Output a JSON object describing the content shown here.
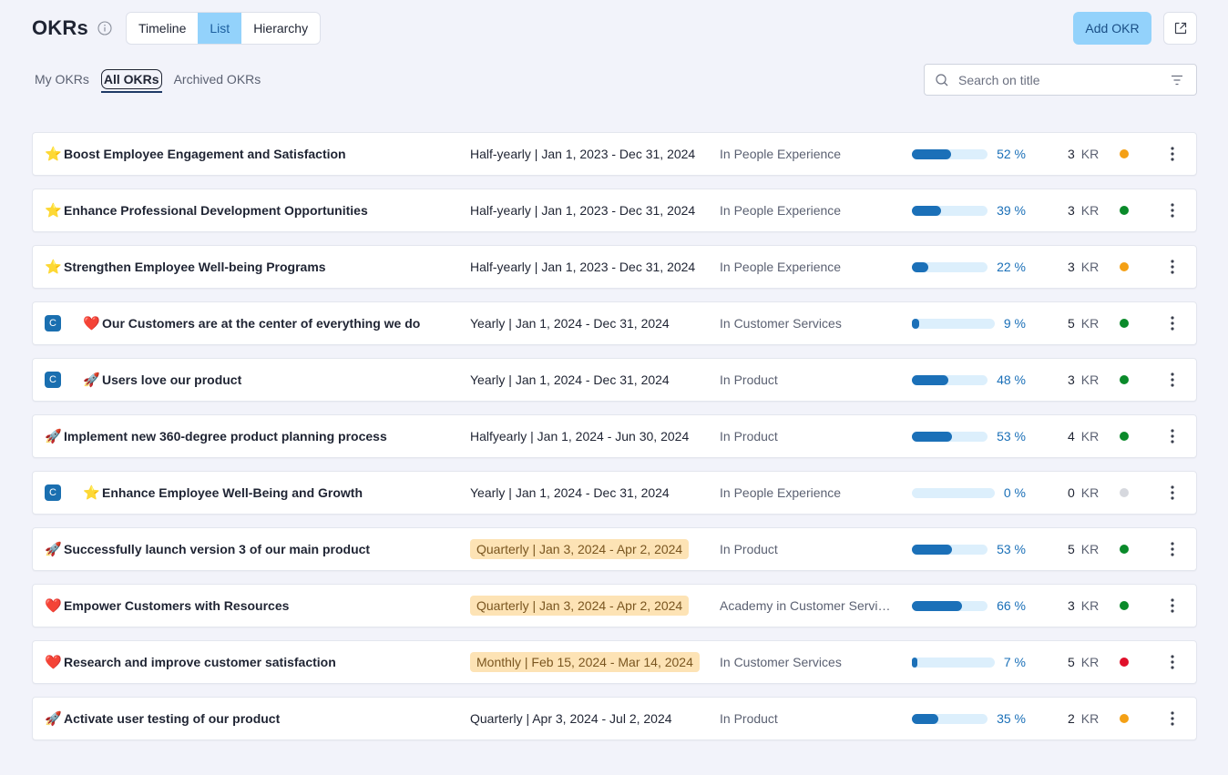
{
  "header": {
    "title": "OKRs",
    "views": [
      "Timeline",
      "List",
      "Hierarchy"
    ],
    "active_view": "List",
    "add_label": "Add OKR"
  },
  "tabs": [
    "My OKRs",
    "All OKRs",
    "Archived OKRs"
  ],
  "active_tab": "All OKRs",
  "search": {
    "placeholder": "Search on title",
    "value": ""
  },
  "kr_label": "KR",
  "colors": {
    "accent": "#93d2fb",
    "progress": "#1b70b8",
    "green": "#0a8a2a",
    "orange": "#f4a015",
    "red": "#e0102a",
    "gray": "#d6d8de"
  },
  "okrs": [
    {
      "icon": "star",
      "child": false,
      "title": "Boost Employee Engagement and Satisfaction",
      "period": "Half-yearly | Jan 1, 2023 - Dec 31, 2024",
      "highlight": false,
      "team": "In People Experience",
      "progress": 52,
      "pct_text": "52 %",
      "kr": "3",
      "status": "orange"
    },
    {
      "icon": "star",
      "child": false,
      "title": "Enhance Professional Development Opportunities",
      "period": "Half-yearly | Jan 1, 2023 - Dec 31, 2024",
      "highlight": false,
      "team": "In People Experience",
      "progress": 39,
      "pct_text": "39 %",
      "kr": "3",
      "status": "green"
    },
    {
      "icon": "star",
      "child": false,
      "title": "Strengthen Employee Well-being Programs",
      "period": "Half-yearly | Jan 1, 2023 - Dec 31, 2024",
      "highlight": false,
      "team": "In People Experience",
      "progress": 22,
      "pct_text": "22 %",
      "kr": "3",
      "status": "orange"
    },
    {
      "icon": "heart",
      "child": true,
      "badge": "C",
      "title": "Our Customers are at the center of everything we do",
      "period": "Yearly | Jan 1, 2024 - Dec 31, 2024",
      "highlight": false,
      "team": "In Customer Services",
      "progress": 9,
      "pct_text": "9 %",
      "kr": "5",
      "status": "green"
    },
    {
      "icon": "rocket",
      "child": true,
      "badge": "C",
      "title": "Users love our product",
      "period": "Yearly | Jan 1, 2024 - Dec 31, 2024",
      "highlight": false,
      "team": "In Product",
      "progress": 48,
      "pct_text": "48 %",
      "kr": "3",
      "status": "green"
    },
    {
      "icon": "rocket",
      "child": false,
      "title": "Implement new 360-degree product planning process",
      "period": "Halfyearly | Jan 1, 2024 - Jun 30, 2024",
      "highlight": false,
      "team": "In Product",
      "progress": 53,
      "pct_text": "53 %",
      "kr": "4",
      "status": "green"
    },
    {
      "icon": "star",
      "child": true,
      "badge": "C",
      "title": "Enhance Employee Well-Being and Growth",
      "period": "Yearly | Jan 1, 2024 - Dec 31, 2024",
      "highlight": false,
      "team": "In People Experience",
      "progress": 0,
      "pct_text": "0 %",
      "kr": "0",
      "status": "gray"
    },
    {
      "icon": "rocket",
      "child": false,
      "title": "Successfully launch version 3 of our main product",
      "period": "Quarterly | Jan 3, 2024 - Apr 2, 2024",
      "highlight": true,
      "team": "In Product",
      "progress": 53,
      "pct_text": "53 %",
      "kr": "5",
      "status": "green"
    },
    {
      "icon": "heart",
      "child": false,
      "title": "Empower Customers with Resources",
      "period": "Quarterly | Jan 3, 2024 - Apr 2, 2024",
      "highlight": true,
      "team": "Academy in Customer Servic…",
      "progress": 66,
      "pct_text": "66 %",
      "kr": "3",
      "status": "green"
    },
    {
      "icon": "heart",
      "child": false,
      "title": "Research and improve customer satisfaction",
      "period": "Monthly | Feb 15, 2024 - Mar 14, 2024",
      "highlight": true,
      "team": "In Customer Services",
      "progress": 7,
      "pct_text": "7 %",
      "kr": "5",
      "status": "red"
    },
    {
      "icon": "rocket",
      "child": false,
      "title": "Activate user testing of our product",
      "period": "Quarterly | Apr 3, 2024 - Jul 2, 2024",
      "highlight": false,
      "team": "In Product",
      "progress": 35,
      "pct_text": "35 %",
      "kr": "2",
      "status": "orange"
    }
  ]
}
